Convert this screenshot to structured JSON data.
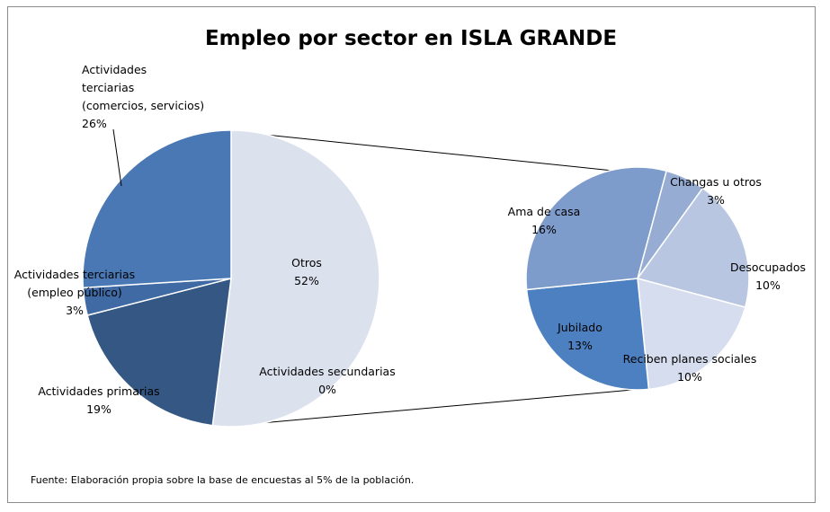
{
  "chart_data": {
    "type": "pie",
    "subtype": "pie-of-pie",
    "title": "Empleo por sector en ISLA GRANDE",
    "main_pie": {
      "slices": [
        {
          "name": "Otros",
          "value": 52,
          "label_lines": [
            "Otros",
            "52%"
          ],
          "color": "#DCE1EE"
        },
        {
          "name": "Actividades secundarias",
          "value": 0,
          "label_lines": [
            "Actividades secundarias",
            "0%"
          ],
          "color": "#DCE1EE"
        },
        {
          "name": "Actividades primarias",
          "value": 19,
          "label_lines": [
            "Actividades primarias",
            "19%"
          ],
          "color": "#345783"
        },
        {
          "name": "Actividades terciarias (empleo público)",
          "value": 3,
          "label_lines": [
            "Actividades terciarias",
            "(empleo público)",
            "3%"
          ],
          "color": "#3F6AA4"
        },
        {
          "name": "Actividades terciarias (comercios, servicios)",
          "value": 26,
          "label_lines": [
            "Actividades",
            "terciarias",
            "(comercios,  servicios)",
            "26%"
          ],
          "color": "#4978B4"
        }
      ]
    },
    "secondary_pie": {
      "of": "Otros",
      "slices": [
        {
          "name": "Changas u otros",
          "value": 3,
          "label_lines": [
            "Changas u otros",
            "3%"
          ],
          "color": "#97ACD3"
        },
        {
          "name": "Desocupados",
          "value": 10,
          "label_lines": [
            "Desocupados",
            "10%"
          ],
          "color": "#B9C6E2"
        },
        {
          "name": "Reciben planes sociales",
          "value": 10,
          "label_lines": [
            "Reciben planes sociales",
            "10%"
          ],
          "color": "#D6DDEE"
        },
        {
          "name": "Jubilado",
          "value": 13,
          "label_lines": [
            "Jubilado",
            "13%"
          ],
          "color": "#4D80C1"
        },
        {
          "name": "Ama de casa",
          "value": 16,
          "label_lines": [
            "Ama de casa",
            "16%"
          ],
          "color": "#7E9CCB"
        }
      ]
    },
    "source": "Fuente: Elaboración propia sobre la base de encuestas al  5%  de la población."
  }
}
